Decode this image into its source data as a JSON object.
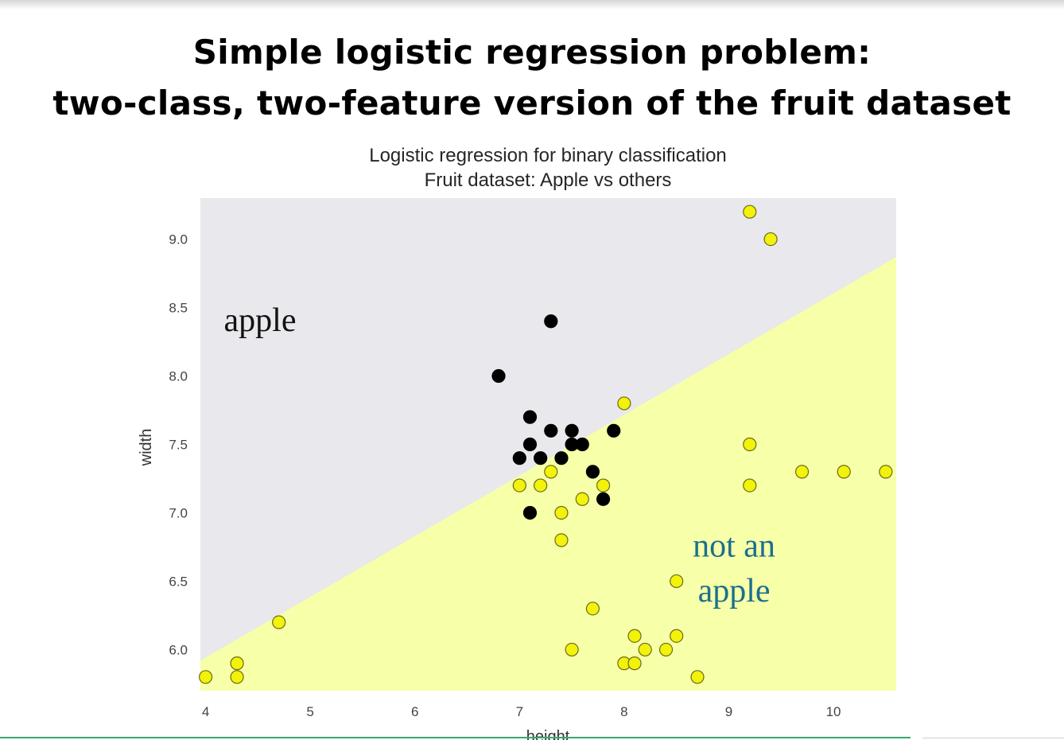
{
  "slide": {
    "title_line1": "Simple logistic regression problem:",
    "title_line2": "two-class, two-feature version of the fruit dataset"
  },
  "chart_data": {
    "type": "scatter",
    "title": "Logistic regression for binary classification",
    "subtitle": "Fruit dataset: Apple vs others",
    "xlabel": "height",
    "ylabel": "width",
    "xlim": [
      3.95,
      10.6
    ],
    "ylim": [
      5.7,
      9.3
    ],
    "xticks": [
      4,
      5,
      6,
      7,
      8,
      9,
      10
    ],
    "yticks": [
      6.0,
      6.5,
      7.0,
      7.5,
      8.0,
      8.5,
      9.0
    ],
    "grid": false,
    "decision_boundary": {
      "points": [
        [
          3.95,
          5.92
        ],
        [
          10.6,
          8.87
        ]
      ]
    },
    "regions": [
      {
        "label": "apple",
        "color": "#e8e8ed"
      },
      {
        "label": "not an\napple",
        "color": "#f7ffa8"
      }
    ],
    "annotations": [
      {
        "text": "apple",
        "x": 4.52,
        "y": 8.33,
        "color": "#111111"
      },
      {
        "text": "not an",
        "x": 9.05,
        "y": 6.68,
        "color": "#1b6f8f"
      },
      {
        "text": "apple",
        "x": 9.05,
        "y": 6.35,
        "color": "#1b6f8f"
      }
    ],
    "series": [
      {
        "class": "apple",
        "color": "#000000",
        "points": [
          [
            6.8,
            8.0
          ],
          [
            7.3,
            8.4
          ],
          [
            7.1,
            7.7
          ],
          [
            7.1,
            7.5
          ],
          [
            7.3,
            7.6
          ],
          [
            7.5,
            7.6
          ],
          [
            7.5,
            7.5
          ],
          [
            7.6,
            7.5
          ],
          [
            7.9,
            7.6
          ],
          [
            7.0,
            7.4
          ],
          [
            7.2,
            7.4
          ],
          [
            7.4,
            7.4
          ],
          [
            7.7,
            7.3
          ],
          [
            7.8,
            7.1
          ],
          [
            7.1,
            7.0
          ]
        ]
      },
      {
        "class": "not apple",
        "color": "#f2f20a",
        "points": [
          [
            9.2,
            9.2
          ],
          [
            9.4,
            9.0
          ],
          [
            8.0,
            7.8
          ],
          [
            9.2,
            7.5
          ],
          [
            9.2,
            7.2
          ],
          [
            9.7,
            7.3
          ],
          [
            10.1,
            7.3
          ],
          [
            10.5,
            7.3
          ],
          [
            7.0,
            7.2
          ],
          [
            7.2,
            7.2
          ],
          [
            7.3,
            7.3
          ],
          [
            7.8,
            7.2
          ],
          [
            7.6,
            7.1
          ],
          [
            7.4,
            7.0
          ],
          [
            7.4,
            6.8
          ],
          [
            8.5,
            6.5
          ],
          [
            7.7,
            6.3
          ],
          [
            4.7,
            6.2
          ],
          [
            4.3,
            5.9
          ],
          [
            4.3,
            5.8
          ],
          [
            4.0,
            5.8
          ],
          [
            7.5,
            6.0
          ],
          [
            8.0,
            5.9
          ],
          [
            8.1,
            5.9
          ],
          [
            8.1,
            6.1
          ],
          [
            8.2,
            6.0
          ],
          [
            8.4,
            6.0
          ],
          [
            8.5,
            6.1
          ],
          [
            8.7,
            5.8
          ]
        ]
      }
    ]
  }
}
